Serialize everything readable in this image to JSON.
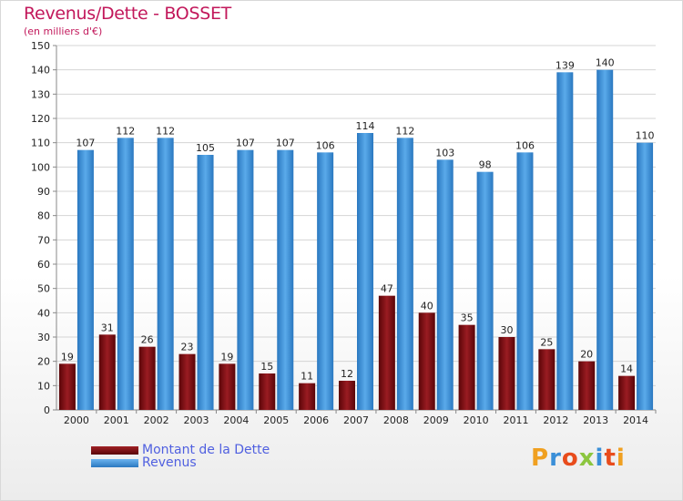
{
  "header": {
    "title": "Revenus/Dette - BOSSET",
    "subtitle": "(en milliers d'€)"
  },
  "legend": {
    "items": [
      {
        "label": "Montant de la Dette",
        "color": "#7a1014"
      },
      {
        "label": "Revenus",
        "color": "#3a8fd8"
      }
    ]
  },
  "logo": {
    "text": "Proxiti",
    "colors": [
      "#f0a020",
      "#3a8fd8",
      "#e84c1c",
      "#8cc63f",
      "#3a8fd8",
      "#e84c1c",
      "#f0a020"
    ]
  },
  "chart_data": {
    "type": "bar",
    "categories": [
      "2000",
      "2001",
      "2002",
      "2003",
      "2004",
      "2005",
      "2006",
      "2007",
      "2008",
      "2009",
      "2010",
      "2011",
      "2012",
      "2013",
      "2014"
    ],
    "series": [
      {
        "name": "Montant de la Dette",
        "color": "#7a1014",
        "values": [
          19,
          31,
          26,
          23,
          19,
          15,
          11,
          12,
          47,
          40,
          35,
          30,
          25,
          20,
          14
        ]
      },
      {
        "name": "Revenus",
        "color": "#3a8fd8",
        "values": [
          107,
          112,
          112,
          105,
          107,
          107,
          106,
          114,
          112,
          103,
          98,
          106,
          139,
          140,
          110
        ]
      }
    ],
    "ylim": [
      0,
      150
    ],
    "yticks": [
      0,
      10,
      20,
      30,
      40,
      50,
      60,
      70,
      80,
      90,
      100,
      110,
      120,
      130,
      140,
      150
    ],
    "grid": true
  }
}
